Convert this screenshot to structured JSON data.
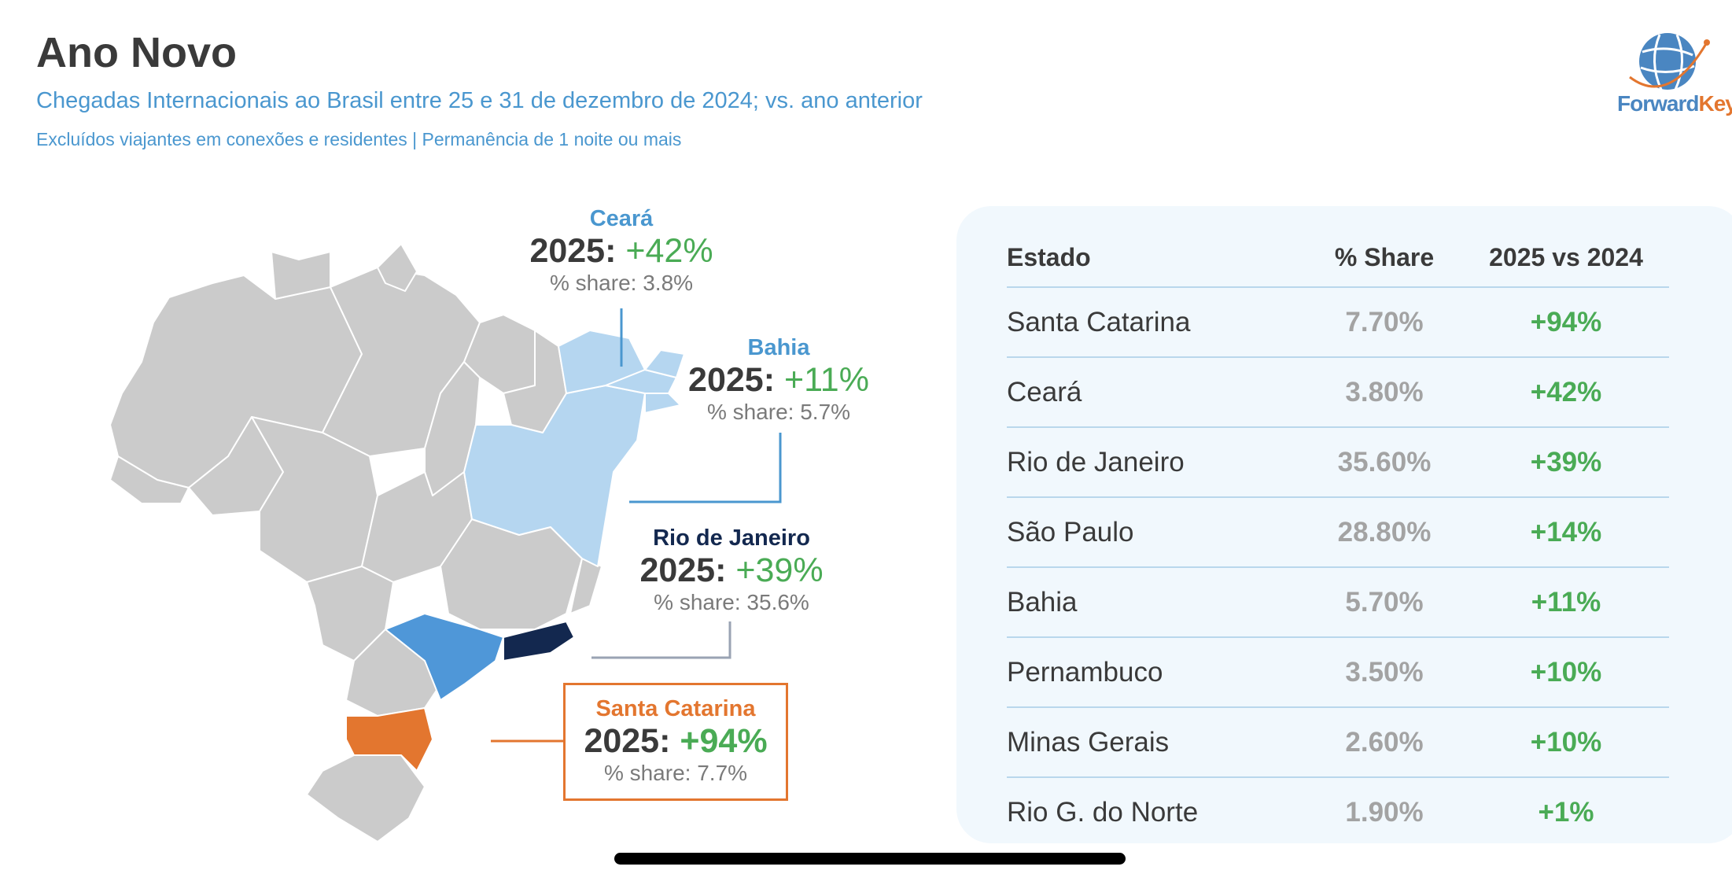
{
  "header": {
    "title": "Ano Novo",
    "subtitle": "Chegadas Internacionais ao Brasil entre 25 e 31 de dezembro de 2024; vs. ano anterior",
    "note": "Excluídos viajantes em conexões e residentes | Permanência de 1 noite ou mais"
  },
  "logo": {
    "part1": "Forward",
    "part2": "Keys",
    "icon": "globe-logo-icon"
  },
  "map": {
    "colors": {
      "default": "#cbcbcb",
      "light_blue": "#b5d6f0",
      "mid_blue": "#4f97d8",
      "navy": "#13284f",
      "orange": "#e3762f"
    }
  },
  "callouts": {
    "ceara": {
      "name": "Ceará",
      "year": "2025:",
      "change": "+42%",
      "share": "% share: 3.8%",
      "color": "#4a97cf"
    },
    "bahia": {
      "name": "Bahia",
      "year": "2025:",
      "change": "+11%",
      "share": "% share: 5.7%",
      "color": "#4a97cf"
    },
    "rio": {
      "name": "Rio de Janeiro",
      "year": "2025:",
      "change": "+39%",
      "share": "% share: 35.6%",
      "color": "#13284f"
    },
    "sc": {
      "name": "Santa Catarina",
      "year": "2025:",
      "change": "+94%",
      "share": "% share: 7.7%",
      "color": "#e3762f"
    }
  },
  "table": {
    "headers": [
      "Estado",
      "% Share",
      "2025 vs 2024"
    ],
    "rows": [
      {
        "estado": "Santa Catarina",
        "share": "7.70%",
        "change": "+94%"
      },
      {
        "estado": "Ceará",
        "share": "3.80%",
        "change": "+42%"
      },
      {
        "estado": "Rio de Janeiro",
        "share": "35.60%",
        "change": "+39%"
      },
      {
        "estado": "São Paulo",
        "share": "28.80%",
        "change": "+14%"
      },
      {
        "estado": "Bahia",
        "share": "5.70%",
        "change": "+11%"
      },
      {
        "estado": "Pernambuco",
        "share": "3.50%",
        "change": "+10%"
      },
      {
        "estado": "Minas Gerais",
        "share": "2.60%",
        "change": "+10%"
      },
      {
        "estado": "Rio G. do Norte",
        "share": "1.90%",
        "change": "+1%"
      }
    ]
  }
}
